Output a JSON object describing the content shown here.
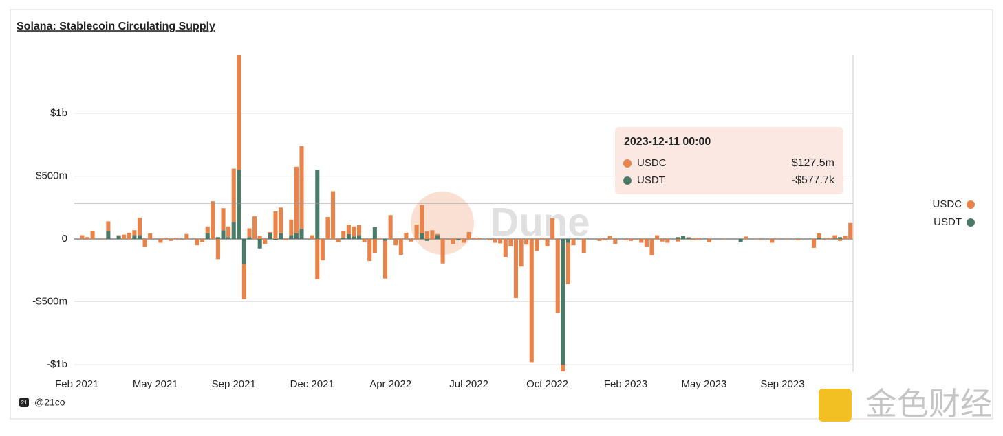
{
  "chart_data": {
    "type": "bar",
    "stacked": true,
    "title": "Solana: Stablecoin Circulating Supply",
    "categories": [
      "Feb 2021",
      null,
      null,
      null,
      null,
      null,
      null,
      null,
      null,
      null,
      null,
      null,
      null,
      null,
      null,
      "May 2021",
      null,
      null,
      null,
      null,
      null,
      null,
      null,
      null,
      null,
      null,
      null,
      null,
      null,
      null,
      "Sep 2021",
      null,
      null,
      null,
      null,
      null,
      null,
      null,
      null,
      null,
      null,
      null,
      null,
      null,
      null,
      "Dec 2021",
      null,
      null,
      null,
      null,
      null,
      null,
      null,
      null,
      null,
      null,
      null,
      null,
      null,
      null,
      "Apr 2022",
      null,
      null,
      null,
      null,
      null,
      null,
      null,
      null,
      null,
      null,
      null,
      null,
      null,
      null,
      "Jul 2022",
      null,
      null,
      null,
      null,
      null,
      null,
      null,
      null,
      null,
      null,
      null,
      null,
      null,
      null,
      "Oct 2022",
      null,
      null,
      null,
      null,
      null,
      null,
      null,
      null,
      null,
      null,
      null,
      null,
      null,
      null,
      "Feb 2023",
      null,
      null,
      null,
      null,
      null,
      null,
      null,
      null,
      null,
      null,
      null,
      null,
      null,
      null,
      "May 2023",
      null,
      null,
      null,
      null,
      null,
      null,
      null,
      null,
      null,
      null,
      null,
      null,
      null,
      null,
      "Sep 2023",
      null,
      null,
      null,
      null,
      null,
      null,
      null,
      null,
      null,
      null,
      null,
      null,
      null
    ],
    "series": [
      {
        "name": "USDC",
        "color": "#e8834a",
        "values": [
          0,
          30000000.0,
          15000000.0,
          65000000.0,
          0,
          5000000.0,
          75000000.0,
          0,
          5000000.0,
          35000000.0,
          50000000.0,
          40000000.0,
          140000000.0,
          -65000000.0,
          45000000.0,
          0,
          -30000000.0,
          10000000.0,
          -15000000.0,
          10000000.0,
          -5000000.0,
          40000000.0,
          0,
          -50000000.0,
          -25000000.0,
          55000000.0,
          300000000.0,
          -160000000.0,
          175000000.0,
          85000000.0,
          425000000.0,
          915000000.0,
          -280000000.0,
          70000000.0,
          180000000.0,
          25000000.0,
          -40000000.0,
          10000000.0,
          220000000.0,
          205000000.0,
          -10000000.0,
          125000000.0,
          530000000.0,
          660000000.0,
          0,
          30000000.0,
          -320000000.0,
          -170000000.0,
          175000000.0,
          380000000.0,
          -25000000.0,
          55000000.0,
          75000000.0,
          80000000.0,
          80000000.0,
          -25000000.0,
          -175000000.0,
          -110000000.0,
          5000000.0,
          -300000000.0,
          190000000.0,
          -50000000.0,
          -125000000.0,
          50000000.0,
          -20000000.0,
          115000000.0,
          225000000.0,
          60000000.0,
          70000000.0,
          10000000.0,
          -195000000.0,
          -5000000.0,
          -40000000.0,
          5000000.0,
          -30000000.0,
          55000000.0,
          10000000.0,
          10000000.0,
          0,
          -10000000.0,
          -30000000.0,
          -35000000.0,
          -145000000.0,
          -60000000.0,
          -470000000.0,
          -220000000.0,
          -45000000.0,
          -980000000.0,
          -95000000.0,
          10000000.0,
          -60000000.0,
          165000000.0,
          -590000000.0,
          -55000000.0,
          -330000000.0,
          -50000000.0,
          0,
          -110000000.0,
          0,
          0,
          -15000000.0,
          -10000000.0,
          25000000.0,
          -40000000.0,
          0,
          -10000000.0,
          -15000000.0,
          -5000000.0,
          -30000000.0,
          -65000000.0,
          -130000000.0,
          30000000.0,
          -20000000.0,
          -30000000.0,
          0,
          -20000000.0,
          0,
          5000000.0,
          -10000000.0,
          10000000.0,
          0,
          -25000000.0,
          0,
          0,
          5000000.0,
          0,
          0,
          0,
          20000000.0,
          0,
          5000000.0,
          -5000000.0,
          0,
          -30000000.0,
          5000000.0,
          0,
          5000000.0,
          0,
          -10000000.0,
          0,
          0,
          -70000000.0,
          35000000.0,
          -5000000.0,
          10000000.0,
          25000000.0,
          -15000000.0,
          25000000.0,
          127500000
        ]
      },
      {
        "name": "USDT",
        "color": "#4b7a68",
        "values": [
          0,
          0,
          0,
          0,
          0,
          0,
          65000000.0,
          0,
          25000000.0,
          0,
          0,
          30000000.0,
          30000000.0,
          0,
          0,
          0,
          0,
          0,
          0,
          0,
          0,
          0,
          0,
          0,
          0,
          45000000.0,
          0,
          15000000.0,
          70000000.0,
          15000000.0,
          135000000.0,
          550000000.0,
          -200000000.0,
          15000000.0,
          0,
          -75000000.0,
          0,
          45000000.0,
          -10000000.0,
          45000000.0,
          0,
          30000000.0,
          45000000.0,
          80000000.0,
          0,
          0,
          550000000.0,
          0,
          0,
          0,
          0,
          10000000.0,
          40000000.0,
          20000000.0,
          30000000.0,
          0,
          0,
          95000000.0,
          0,
          -15000000.0,
          0,
          0,
          0,
          0,
          0,
          0,
          45000000.0,
          -15000000.0,
          0,
          30000000.0,
          0,
          0,
          0,
          -10000000.0,
          0,
          0,
          0,
          0,
          0,
          0,
          0,
          0,
          0,
          0,
          0,
          0,
          0,
          0,
          0,
          0,
          0,
          0,
          0,
          -1000000000.0,
          -30000000.0,
          0,
          0,
          0,
          0,
          0,
          0,
          0,
          0,
          0,
          0,
          0,
          0,
          0,
          0,
          0,
          0,
          0,
          0,
          0,
          0,
          15000000.0,
          25000000.0,
          10000000.0,
          0,
          0,
          0,
          0,
          0,
          0,
          0,
          0,
          0,
          -25000000.0,
          0,
          0,
          0,
          0,
          0,
          0,
          0,
          0,
          0,
          0,
          0,
          0,
          0,
          0,
          10000000.0,
          0,
          0,
          5000000.0,
          15000000.0,
          0,
          -577700
        ]
      }
    ],
    "ylim": [
      -1060000000,
      1465000000
    ],
    "yticks": [
      {
        "value": -1000000000,
        "label": "-$1b"
      },
      {
        "value": -500000000,
        "label": "-$500m"
      },
      0,
      {
        "value": 500000000,
        "label": "$500m"
      },
      {
        "value": 1000000000,
        "label": "$1b"
      }
    ],
    "grid": true,
    "legend": "right",
    "tooltip": {
      "title": "2023-12-11 00:00",
      "value_labels": [
        "$127.5m",
        "-$577.7k"
      ]
    }
  },
  "watermark": "Dune",
  "footer": "@21co",
  "footer_icon": "21",
  "brand": "金色财经"
}
